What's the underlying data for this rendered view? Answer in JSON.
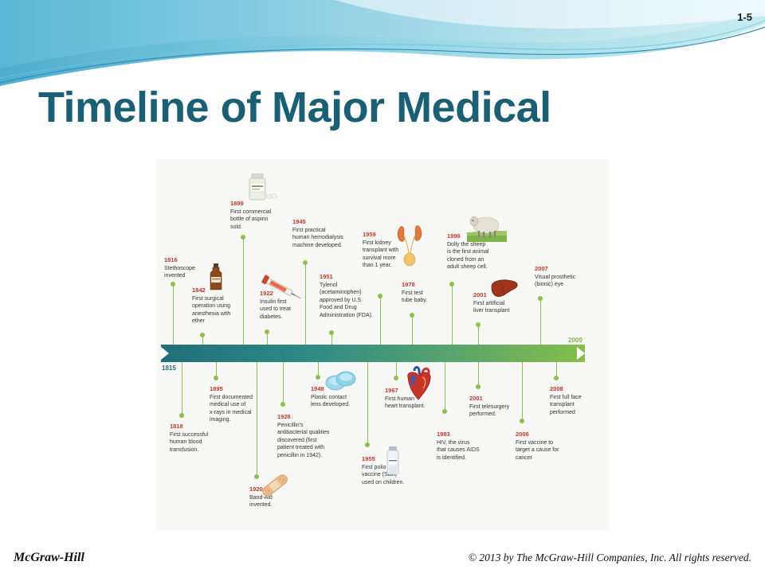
{
  "slide": {
    "number": "1-5",
    "title": "Timeline of Major Medical",
    "footer_left": "McGraw-Hill",
    "footer_right": "© 2013 by The McGraw-Hill Companies, Inc. All rights reserved."
  },
  "timeline": {
    "start_label": "1815",
    "end_label": "2009",
    "bar_colors": [
      "#1f6f7a",
      "#86bf4a"
    ],
    "year_color": "#c0392b",
    "events": [
      {
        "year": "1816",
        "text": "Stethoscope\ninvented"
      },
      {
        "year": "1818",
        "text": "First successful\nhuman blood\ntransfusion."
      },
      {
        "year": "1842",
        "text": "First surgical\noperation using\nanesthesia with\nether"
      },
      {
        "year": "1895",
        "text": "First documented\nmedical use of\nx-rays in medical\nimaging."
      },
      {
        "year": "1899",
        "text": "First commercial\nbottle of aspirin\nsold."
      },
      {
        "year": "1920",
        "text": "Band-Aid\ninvented."
      },
      {
        "year": "1922",
        "text": "Insulin first\nused to treat\ndiabetes."
      },
      {
        "year": "1928",
        "text": "Penicillin's\nantibacterial qualities\ndiscovered (first\npatient treated with\npenicillin in 1942)."
      },
      {
        "year": "1945",
        "text": "First practical\nhuman hemodialysis\nmachine developed."
      },
      {
        "year": "1948",
        "text": "Plastic contact\nlens developed."
      },
      {
        "year": "1951",
        "text": "Tylenol\n(acetaminophen)\napproved by U.S\nFood and Drug\nAdministration (FDA)."
      },
      {
        "year": "1955",
        "text": "First polio\nvaccine (Salk)\nused on children."
      },
      {
        "year": "1959",
        "text": "First kidney\ntransplant with\nsurvival more\nthan 1 year."
      },
      {
        "year": "1967",
        "text": "First human\nheart transplant."
      },
      {
        "year": "1978",
        "text": "First test\ntube baby."
      },
      {
        "year": "1983",
        "text": "HIV, the virus\nthat causes AIDS\nis identified."
      },
      {
        "year": "1996",
        "text": "Dolly the sheep\nis the first animal\ncloned from an\nadult sheep cell."
      },
      {
        "year": "2001",
        "text": "First artificial\nliver transplant"
      },
      {
        "year": "2001",
        "text": "First telesurgery\nperformed."
      },
      {
        "year": "2006",
        "text": "First vaccine to\ntarget a cause for\ncancer"
      },
      {
        "year": "2007",
        "text": "Visual prosthetic\n(bionic) eye"
      },
      {
        "year": "2008",
        "text": "First full face\ntransplant\nperformed"
      }
    ],
    "illustrations": [
      "aspirin-bottle-icon",
      "ether-bottle-icon",
      "insulin-syringe-icon",
      "band-aid-icon",
      "contact-lens-icon",
      "kidney-icon",
      "polio-vaccine-vial-icon",
      "human-heart-icon",
      "sheep-icon",
      "liver-icon"
    ]
  }
}
